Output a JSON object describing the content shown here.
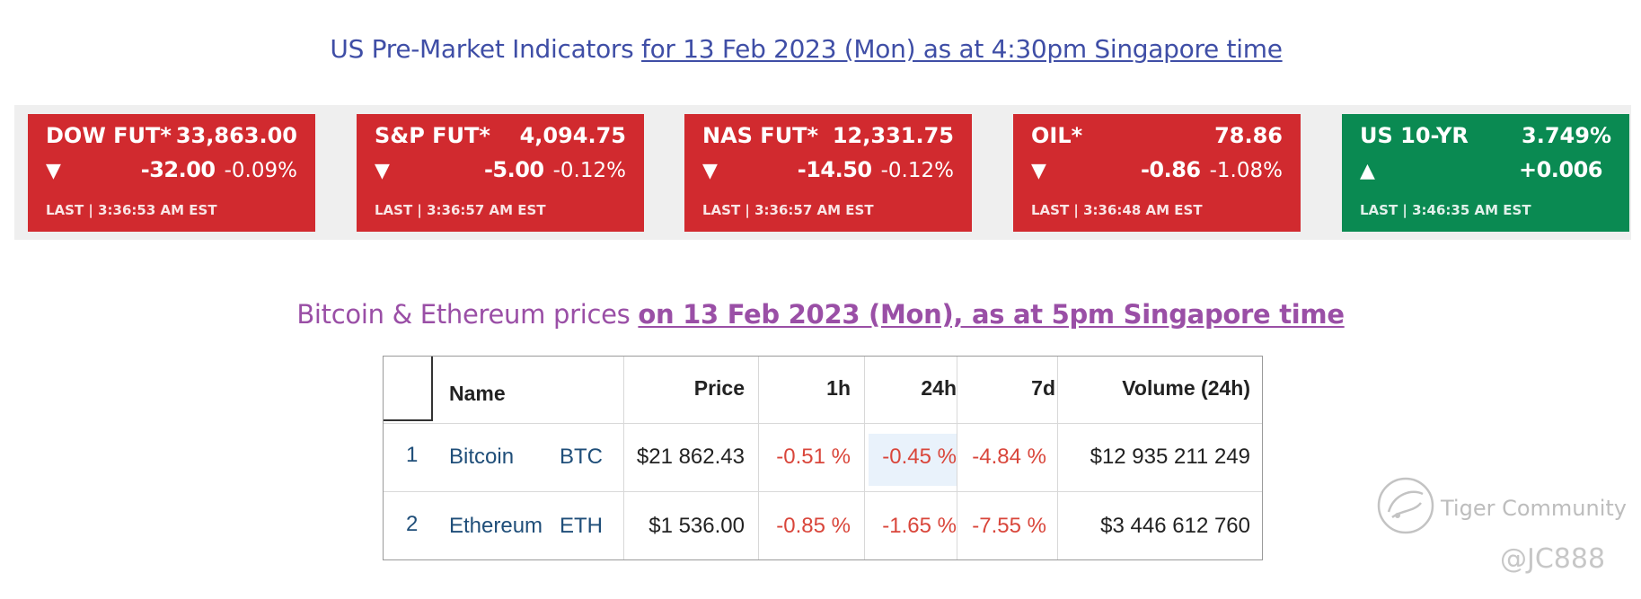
{
  "us_title": {
    "prefix": "US Pre-Market Indicators ",
    "underlined": "for 13 Feb 2023 (Mon) as at 4:30pm Singapore time"
  },
  "indicators": [
    {
      "name": "DOW FUT*",
      "value": "33,863.00",
      "arrow": "▼",
      "change": "-32.00",
      "pct": "-0.09%",
      "last": "LAST | 3:36:53 AM EST",
      "color": "#d12a2f"
    },
    {
      "name": "S&P FUT*",
      "value": "4,094.75",
      "arrow": "▼",
      "change": "-5.00",
      "pct": "-0.12%",
      "last": "LAST | 3:36:57 AM EST",
      "color": "#d12a2f"
    },
    {
      "name": "NAS FUT*",
      "value": "12,331.75",
      "arrow": "▼",
      "change": "-14.50",
      "pct": "-0.12%",
      "last": "LAST | 3:36:57 AM EST",
      "color": "#d12a2f"
    },
    {
      "name": "OIL*",
      "value": "78.86",
      "arrow": "▼",
      "change": "-0.86",
      "pct": "-1.08%",
      "last": "LAST | 3:36:48 AM EST",
      "color": "#d12a2f"
    },
    {
      "name": "US 10-YR",
      "value": "3.749%",
      "arrow": "▲",
      "change": "+0.006",
      "pct": "",
      "last": "LAST | 3:46:35 AM EST",
      "color": "#0a8a52"
    }
  ],
  "crypto_title": {
    "prefix": "Bitcoin & Ethereum prices ",
    "underlined": "on 13 Feb 2023 (Mon), as at 5pm Singapore time"
  },
  "crypto_table": {
    "headers": {
      "name": "Name",
      "price": "Price",
      "h1": "1h",
      "h24": "24h",
      "d7": "7d",
      "volume": "Volume (24h)"
    },
    "rows": [
      {
        "rank": "1",
        "name": "Bitcoin",
        "symbol": "BTC",
        "price": "$21 862.43",
        "h1": "-0.51 %",
        "h24": "-0.45 %",
        "d7": "-4.84 %",
        "volume": "$12 935 211 249"
      },
      {
        "rank": "2",
        "name": "Ethereum",
        "symbol": "ETH",
        "price": "$1 536.00",
        "h1": "-0.85 %",
        "h24": "-1.65 %",
        "d7": "-7.55 %",
        "volume": "$3 446 612 760"
      }
    ]
  },
  "watermark": {
    "brand": "Tiger Community",
    "handle": "@JC888",
    "icon": "tiger-logo-icon"
  }
}
